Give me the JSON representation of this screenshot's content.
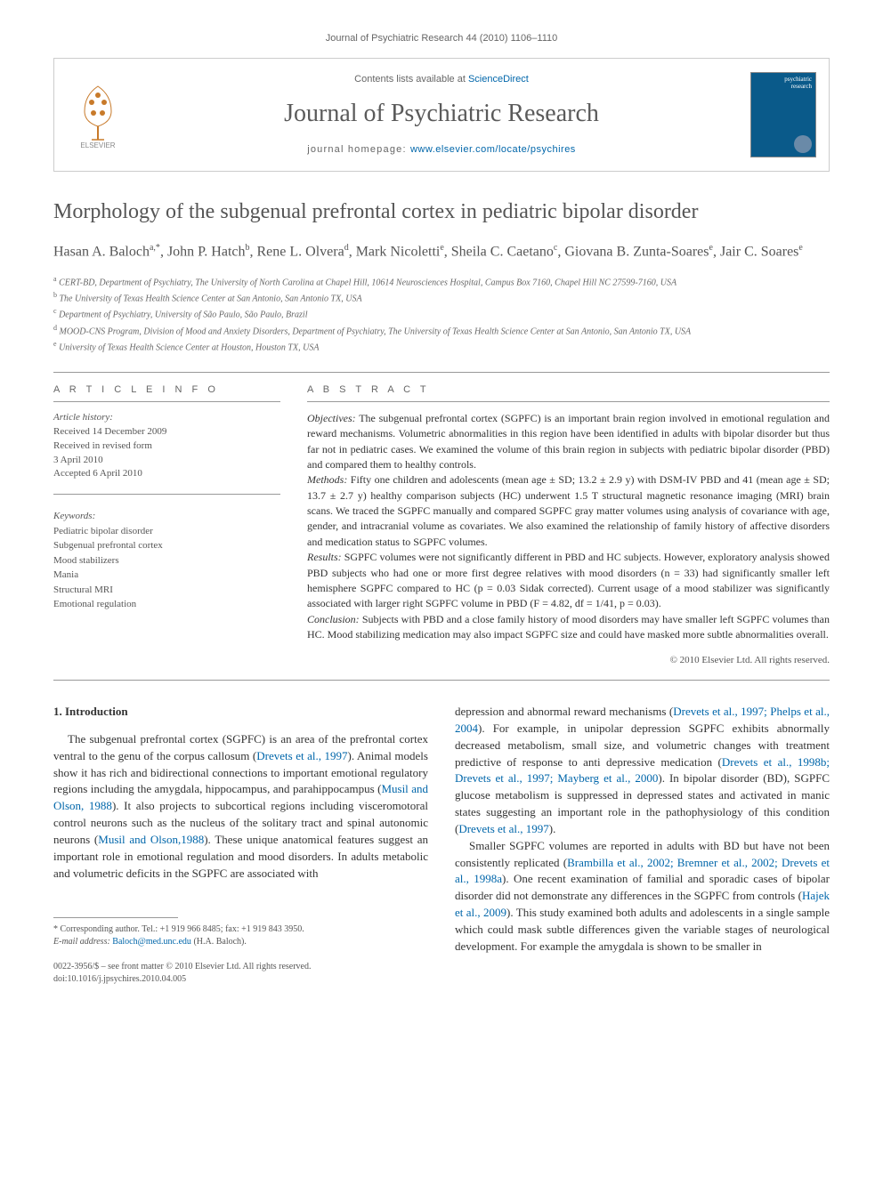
{
  "running_header": "Journal of Psychiatric Research 44 (2010) 1106–1110",
  "masthead": {
    "contents_prefix": "Contents lists available at ",
    "contents_link": "ScienceDirect",
    "journal_name": "Journal of Psychiatric Research",
    "homepage_prefix": "journal homepage: ",
    "homepage_url": "www.elsevier.com/locate/psychires",
    "cover_line1": "psychiatric",
    "cover_line2": "research"
  },
  "article": {
    "title": "Morphology of the subgenual prefrontal cortex in pediatric bipolar disorder",
    "authors_html": "Hasan A. Baloch<sup>a,*</sup>, John P. Hatch<sup>b</sup>, Rene L. Olvera<sup>d</sup>, Mark Nicoletti<sup>e</sup>, Sheila C. Caetano<sup>c</sup>, Giovana B. Zunta-Soares<sup>e</sup>, Jair C. Soares<sup>e</sup>",
    "affiliations": [
      {
        "sup": "a",
        "text": "CERT-BD, Department of Psychiatry, The University of North Carolina at Chapel Hill, 10614 Neurosciences Hospital, Campus Box 7160, Chapel Hill NC 27599-7160, USA"
      },
      {
        "sup": "b",
        "text": "The University of Texas Health Science Center at San Antonio, San Antonio TX, USA"
      },
      {
        "sup": "c",
        "text": "Department of Psychiatry, University of São Paulo, São Paulo, Brazil"
      },
      {
        "sup": "d",
        "text": "MOOD-CNS Program, Division of Mood and Anxiety Disorders, Department of Psychiatry, The University of Texas Health Science Center at San Antonio, San Antonio TX, USA"
      },
      {
        "sup": "e",
        "text": "University of Texas Health Science Center at Houston, Houston TX, USA"
      }
    ]
  },
  "info": {
    "heading": "A R T I C L E   I N F O",
    "history_label": "Article history:",
    "received": "Received 14 December 2009",
    "revised1": "Received in revised form",
    "revised2": "3 April 2010",
    "accepted": "Accepted 6 April 2010",
    "keywords_label": "Keywords:",
    "keywords": [
      "Pediatric bipolar disorder",
      "Subgenual prefrontal cortex",
      "Mood stabilizers",
      "Mania",
      "Structural MRI",
      "Emotional regulation"
    ]
  },
  "abstract": {
    "heading": "A B S T R A C T",
    "objectives_label": "Objectives:",
    "objectives": " The subgenual prefrontal cortex (SGPFC) is an important brain region involved in emotional regulation and reward mechanisms. Volumetric abnormalities in this region have been identified in adults with bipolar disorder but thus far not in pediatric cases. We examined the volume of this brain region in subjects with pediatric bipolar disorder (PBD) and compared them to healthy controls.",
    "methods_label": "Methods:",
    "methods": " Fifty one children and adolescents (mean age ± SD; 13.2 ± 2.9 y) with DSM-IV PBD and 41 (mean age ± SD; 13.7 ± 2.7 y) healthy comparison subjects (HC) underwent 1.5 T structural magnetic resonance imaging (MRI) brain scans. We traced the SGPFC manually and compared SGPFC gray matter volumes using analysis of covariance with age, gender, and intracranial volume as covariates. We also examined the relationship of family history of affective disorders and medication status to SGPFC volumes.",
    "results_label": "Results:",
    "results": " SGPFC volumes were not significantly different in PBD and HC subjects. However, exploratory analysis showed PBD subjects who had one or more first degree relatives with mood disorders (n = 33) had significantly smaller left hemisphere SGPFC compared to HC (p = 0.03 Sidak corrected). Current usage of a mood stabilizer was significantly associated with larger right SGPFC volume in PBD (F = 4.82, df = 1/41, p = 0.03).",
    "conclusion_label": "Conclusion:",
    "conclusion": " Subjects with PBD and a close family history of mood disorders may have smaller left SGPFC volumes than HC. Mood stabilizing medication may also impact SGPFC size and could have masked more subtle abnormalities overall.",
    "copyright": "© 2010 Elsevier Ltd. All rights reserved."
  },
  "body": {
    "intro_heading": "1.  Introduction",
    "left_p1_a": "The subgenual prefrontal cortex (SGPFC) is an area of the prefrontal cortex ventral to the genu of the corpus callosum (",
    "left_p1_c1": "Drevets et al., 1997",
    "left_p1_b": "). Animal models show it has rich and bidirectional connections to important emotional regulatory regions including the amygdala, hippocampus, and parahippocampus (",
    "left_p1_c2": "Musil and Olson, 1988",
    "left_p1_c": "). It also projects to subcortical regions including visceromotoral control neurons such as the nucleus of the solitary tract and spinal autonomic neurons (",
    "left_p1_c3": "Musil and Olson,1988",
    "left_p1_d": "). These unique anatomical features suggest an important role in emotional regulation and mood disorders. In adults metabolic and volumetric deficits in the SGPFC are associated with",
    "right_p1_a": "depression and abnormal reward mechanisms (",
    "right_p1_c1": "Drevets et al., 1997; Phelps et al., 2004",
    "right_p1_b": "). For example, in unipolar depression SGPFC exhibits abnormally decreased metabolism, small size, and volumetric changes with treatment predictive of response to anti depressive medication (",
    "right_p1_c2": "Drevets et al., 1998b; Drevets et al., 1997; Mayberg et al., 2000",
    "right_p1_c": "). In bipolar disorder (BD), SGPFC glucose metabolism is suppressed in depressed states and activated in manic states suggesting an important role in the pathophysiology of this condition (",
    "right_p1_c3": "Drevets et al., 1997",
    "right_p1_d": ").",
    "right_p2_a": "Smaller SGPFC volumes are reported in adults with BD but have not been consistently replicated (",
    "right_p2_c1": "Brambilla et al., 2002; Bremner et al., 2002; Drevets et al., 1998a",
    "right_p2_b": "). One recent examination of familial and sporadic cases of bipolar disorder did not demonstrate any differences in the SGPFC from controls (",
    "right_p2_c2": "Hajek et al., 2009",
    "right_p2_c": "). This study examined both adults and adolescents in a single sample which could mask subtle differences given the variable stages of neurological development. For example the amygdala is shown to be smaller in"
  },
  "footnote": {
    "corr": "* Corresponding author. Tel.: +1 919 966 8485; fax: +1 919 843 3950.",
    "email_label": "E-mail address: ",
    "email": "Baloch@med.unc.edu",
    "email_suffix": " (H.A. Baloch)."
  },
  "footer": {
    "line1": "0022-3956/$ – see front matter © 2010 Elsevier Ltd. All rights reserved.",
    "line2": "doi:10.1016/j.jpsychires.2010.04.005"
  },
  "colors": {
    "link": "#0066aa",
    "text": "#333333",
    "muted": "#666666",
    "cover_bg": "#0a5a8a"
  }
}
